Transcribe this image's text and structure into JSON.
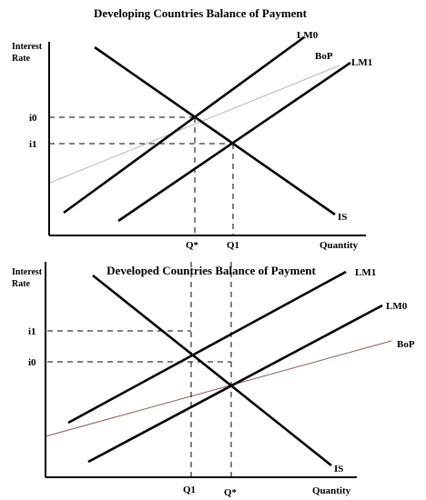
{
  "top_panel": {
    "title": "Developing Countries Balance of Payment",
    "y_axis_label_line1": "Interest",
    "y_axis_label_line2": "Rate",
    "x_axis_label": "Quantity",
    "curves": {
      "lm0": "LM0",
      "lm1": "LM1",
      "bop": "BoP",
      "is": "IS"
    },
    "y_ticks": {
      "i0": "i0",
      "i1": "i1"
    },
    "x_ticks": {
      "q_star": "Q*",
      "q1": "Q1"
    },
    "colors": {
      "bop_line": "#b8b8b8"
    }
  },
  "bottom_panel": {
    "title": "Developed Countries Balance of Payment",
    "y_axis_label_line1": "Interest",
    "y_axis_label_line2": "Rate",
    "x_axis_label": "Quantity",
    "curves": {
      "lm0": "LM0",
      "lm1": "LM1",
      "bop": "BoP",
      "is": "IS"
    },
    "y_ticks": {
      "i1": "i1",
      "i0": "i0"
    },
    "x_ticks": {
      "q1": "Q1",
      "q_star": "Q*"
    },
    "colors": {
      "bop_line": "#8a5a4a"
    }
  }
}
